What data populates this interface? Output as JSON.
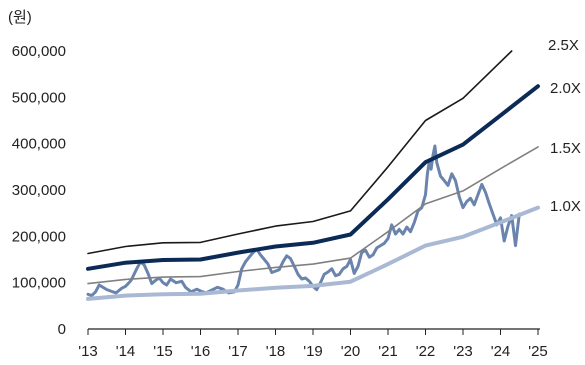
{
  "chart_data": {
    "type": "line",
    "unit_label": "(원)",
    "ylim": [
      0,
      600000
    ],
    "y_ticks": [
      0,
      100000,
      200000,
      300000,
      400000,
      500000,
      600000
    ],
    "y_tick_labels": [
      "0",
      "100,000",
      "200,000",
      "300,000",
      "400,000",
      "500,000",
      "600,000"
    ],
    "xlim": [
      2013,
      2025
    ],
    "x_ticks": [
      2013,
      2014,
      2015,
      2016,
      2017,
      2018,
      2019,
      2020,
      2021,
      2022,
      2023,
      2024,
      2025
    ],
    "x_tick_labels": [
      "'13",
      "'14",
      "'15",
      "'16",
      "'17",
      "'18",
      "'19",
      "'20",
      "'21",
      "'22",
      "'23",
      "'24",
      "'25"
    ],
    "grid": false,
    "colors": {
      "band_2_5x": "#1a1a1a",
      "band_2_0x": "#0b2a55",
      "band_1_5x": "#808080",
      "band_1_0x": "#a9b9d4",
      "price": "#6a84ad",
      "axis": "#222222"
    },
    "series": [
      {
        "name": "2.5X",
        "x": [
          2013,
          2014,
          2015,
          2016,
          2017,
          2018,
          2019,
          2020,
          2021,
          2022,
          2023,
          2024.3
        ],
        "y": [
          163000,
          178000,
          186000,
          187000,
          205000,
          222000,
          232000,
          255000,
          350000,
          450000,
          498000,
          600000
        ]
      },
      {
        "name": "2.0X",
        "x": [
          2013,
          2014,
          2015,
          2016,
          2017,
          2018,
          2019,
          2020,
          2021,
          2022,
          2023,
          2024,
          2025
        ],
        "y": [
          130000,
          143000,
          149000,
          150000,
          165000,
          178000,
          186000,
          204000,
          280000,
          360000,
          398000,
          461000,
          524000
        ]
      },
      {
        "name": "1.5X",
        "x": [
          2013,
          2014,
          2015,
          2016,
          2017,
          2018,
          2019,
          2020,
          2021,
          2022,
          2023,
          2024,
          2025
        ],
        "y": [
          98000,
          107000,
          112000,
          113000,
          124000,
          133000,
          140000,
          153000,
          210000,
          270000,
          298000,
          346000,
          393000
        ]
      },
      {
        "name": "1.0X",
        "x": [
          2013,
          2014,
          2015,
          2016,
          2017,
          2018,
          2019,
          2020,
          2021,
          2022,
          2023,
          2024,
          2025
        ],
        "y": [
          65000,
          72000,
          75000,
          76000,
          83000,
          89000,
          93000,
          102000,
          140000,
          180000,
          199000,
          230000,
          262000
        ]
      },
      {
        "name": "",
        "x": [
          2013,
          2013.1,
          2013.2,
          2013.3,
          2013.4,
          2013.5,
          2013.6,
          2013.75,
          2013.9,
          2014,
          2014.15,
          2014.3,
          2014.4,
          2014.5,
          2014.6,
          2014.7,
          2014.8,
          2014.9,
          2015,
          2015.1,
          2015.2,
          2015.35,
          2015.5,
          2015.6,
          2015.75,
          2015.9,
          2016,
          2016.15,
          2016.3,
          2016.45,
          2016.6,
          2016.75,
          2016.9,
          2017,
          2017.1,
          2017.2,
          2017.3,
          2017.4,
          2017.5,
          2017.6,
          2017.7,
          2017.8,
          2017.9,
          2018,
          2018.1,
          2018.2,
          2018.3,
          2018.4,
          2018.5,
          2018.6,
          2018.7,
          2018.8,
          2018.9,
          2019,
          2019.1,
          2019.2,
          2019.3,
          2019.4,
          2019.5,
          2019.6,
          2019.7,
          2019.8,
          2019.9,
          2020,
          2020.1,
          2020.2,
          2020.3,
          2020.4,
          2020.5,
          2020.6,
          2020.7,
          2020.8,
          2020.9,
          2021,
          2021.1,
          2021.2,
          2021.3,
          2021.4,
          2021.5,
          2021.6,
          2021.7,
          2021.8,
          2021.9,
          2022,
          2022.05,
          2022.1,
          2022.15,
          2022.2,
          2022.25,
          2022.3,
          2022.35,
          2022.4,
          2022.5,
          2022.6,
          2022.7,
          2022.8,
          2022.9,
          2023,
          2023.1,
          2023.2,
          2023.3,
          2023.4,
          2023.5,
          2023.6,
          2023.7,
          2023.8,
          2023.9,
          2024,
          2024.1,
          2024.2,
          2024.3,
          2024.4,
          2024.5
        ],
        "y": [
          75000,
          72000,
          80000,
          95000,
          90000,
          85000,
          82000,
          78000,
          88000,
          92000,
          105000,
          130000,
          145000,
          138000,
          120000,
          98000,
          105000,
          110000,
          100000,
          95000,
          108000,
          100000,
          103000,
          90000,
          80000,
          86000,
          82000,
          78000,
          84000,
          90000,
          86000,
          78000,
          80000,
          95000,
          130000,
          145000,
          155000,
          165000,
          172000,
          160000,
          150000,
          140000,
          122000,
          125000,
          128000,
          145000,
          158000,
          152000,
          135000,
          118000,
          108000,
          110000,
          103000,
          92000,
          85000,
          100000,
          118000,
          123000,
          130000,
          115000,
          118000,
          130000,
          135000,
          150000,
          120000,
          135000,
          165000,
          170000,
          155000,
          160000,
          175000,
          180000,
          185000,
          195000,
          225000,
          205000,
          215000,
          205000,
          220000,
          210000,
          230000,
          255000,
          262000,
          290000,
          335000,
          360000,
          345000,
          375000,
          395000,
          360000,
          345000,
          330000,
          320000,
          310000,
          335000,
          320000,
          285000,
          262000,
          275000,
          282000,
          268000,
          290000,
          312000,
          295000,
          270000,
          248000,
          225000,
          240000,
          190000,
          222000,
          245000,
          180000,
          248000
        ]
      }
    ]
  }
}
